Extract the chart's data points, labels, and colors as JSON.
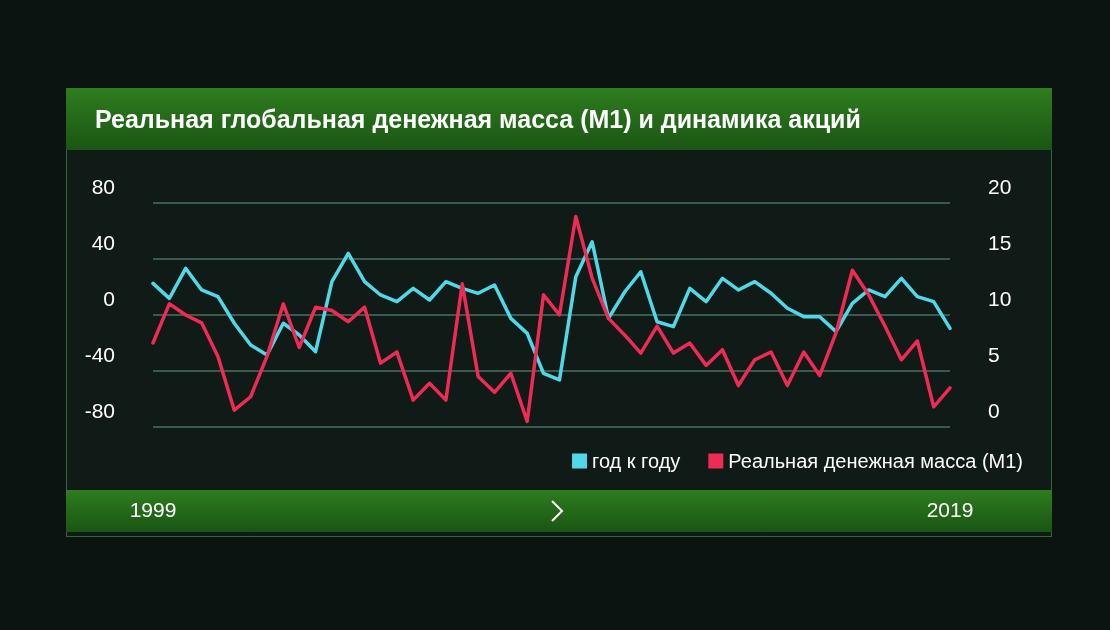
{
  "chart_data": {
    "type": "line",
    "title": "Реальная глобальная денежная масса (M1) и динамика акций",
    "x": [
      1999,
      1999.41,
      1999.82,
      2000.22,
      2000.63,
      2001.04,
      2001.45,
      2001.86,
      2002.27,
      2002.67,
      2003.08,
      2003.49,
      2003.9,
      2004.31,
      2004.71,
      2005.12,
      2005.53,
      2005.94,
      2006.35,
      2006.76,
      2007.16,
      2007.57,
      2007.98,
      2008.39,
      2008.8,
      2009.2,
      2009.61,
      2010.02,
      2010.43,
      2010.84,
      2011.24,
      2011.65,
      2012.06,
      2012.47,
      2012.88,
      2013.29,
      2013.69,
      2014.1,
      2014.51,
      2014.92,
      2015.33,
      2015.73,
      2016.14,
      2016.55,
      2016.96,
      2017.37,
      2017.78,
      2018.18,
      2018.59,
      2019
    ],
    "series": [
      {
        "name": "год к году",
        "color": "#4fd8e8",
        "values": [
          22.6,
          11.9,
          33.3,
          17.9,
          13.1,
          -5.9,
          -21.4,
          -28.6,
          -5.9,
          -14.3,
          -26.2,
          23.8,
          44,
          23.8,
          14.3,
          9.5,
          19,
          10.7,
          23.8,
          19,
          15.5,
          21.4,
          -2.4,
          -13.1,
          -41.7,
          -46.4,
          27.4,
          52.3,
          -2.4,
          16.6,
          30.9,
          -4.8,
          -8.3,
          19,
          9.5,
          26.2,
          17.9,
          23.8,
          15.5,
          4.8,
          -1.2,
          -1.2,
          -11.9,
          8.3,
          17.9,
          13.1,
          26.2,
          13.1,
          9.5,
          -9.5
        ]
      },
      {
        "name": "Реальная денежная масса (M1)",
        "color": "#ee2a55",
        "axis": "y2",
        "values": [
          7.5,
          11,
          10,
          9.3,
          6.3,
          1.5,
          2.7,
          6.3,
          11,
          7.1,
          10.7,
          10.4,
          9.4,
          10.7,
          5.7,
          6.7,
          2.4,
          3.9,
          2.4,
          12.8,
          4.5,
          3.1,
          4.8,
          0.5,
          11.8,
          10,
          18.8,
          13.3,
          9.7,
          8.2,
          6.6,
          9,
          6.6,
          7.5,
          5.5,
          6.9,
          3.7,
          6,
          6.7,
          3.7,
          6.7,
          4.6,
          8.4,
          14,
          11.8,
          9,
          6,
          7.7,
          1.8,
          3.5
        ]
      }
    ],
    "xlim": [
      1999,
      2019
    ],
    "xticks": [
      1999,
      2019
    ],
    "ylim": [
      -80,
      80
    ],
    "yticks": [
      -80,
      -40,
      0,
      40,
      80
    ],
    "y2lim": [
      0,
      20
    ],
    "y2ticks": [
      0,
      5,
      10,
      15,
      20
    ],
    "grid": "y",
    "legend": "bottom right",
    "marker": "none",
    "line_style": "solid"
  }
}
